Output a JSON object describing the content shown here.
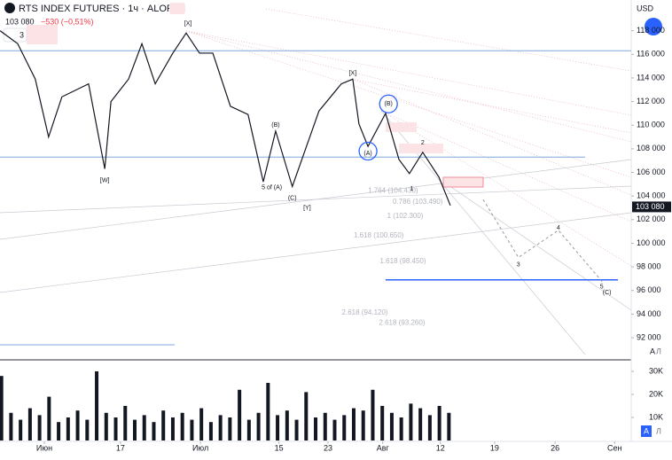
{
  "header": {
    "symbol": "RTS INDEX FUTURES · 1ч · ALOR",
    "price": "103 080",
    "change": "−530 (−0,51%)",
    "currency": "USD",
    "count": "3"
  },
  "buttons": {
    "auto": "A",
    "log": "Л"
  },
  "chart_data": {
    "type": "line",
    "xlim": [
      -9.31,
      123.3
    ],
    "xticks": [
      {
        "value": 0,
        "label": "Июн"
      },
      {
        "value": 16,
        "label": "17"
      },
      {
        "value": 32.8,
        "label": "Июл"
      },
      {
        "value": 49.3,
        "label": "15"
      },
      {
        "value": 59.6,
        "label": "23"
      },
      {
        "value": 71.1,
        "label": "Авг"
      },
      {
        "value": 83.2,
        "label": "12"
      },
      {
        "value": 94.6,
        "label": "19"
      },
      {
        "value": 107.3,
        "label": "26"
      },
      {
        "value": 119.8,
        "label": "Сен"
      }
    ],
    "ylim": [
      90200,
      120600
    ],
    "yticks": [
      {
        "value": 92000,
        "label": "92 000"
      },
      {
        "value": 94000,
        "label": "94 000"
      },
      {
        "value": 96000,
        "label": "96 000"
      },
      {
        "value": 98000,
        "label": "98 000"
      },
      {
        "value": 100000,
        "label": "100 000"
      },
      {
        "value": 102000,
        "label": "102 000"
      },
      {
        "value": 104000,
        "label": "104 000"
      },
      {
        "value": 106000,
        "label": "106 000"
      },
      {
        "value": 108000,
        "label": "108 000"
      },
      {
        "value": 110000,
        "label": "110 000"
      },
      {
        "value": 112000,
        "label": "112 000"
      },
      {
        "value": 114000,
        "label": "114 000"
      },
      {
        "value": 116000,
        "label": "116 000"
      },
      {
        "value": 118000,
        "label": "118 000"
      }
    ],
    "last": {
      "value": 103080,
      "label": "103 080"
    },
    "series": [
      {
        "color": "#131722",
        "dash": false,
        "x": [
          -9.3,
          -5.6,
          -1.9,
          0.9,
          3.7,
          9.3,
          12.7,
          14.0,
          17.7,
          20.5,
          23.3,
          27.0,
          29.8,
          32.6,
          35.4,
          39.1,
          42.8,
          46.0,
          48.6,
          52.1,
          57.7,
          62.4,
          64.8,
          66.1,
          68.0,
          71.7,
          74.5,
          76.7,
          79.5,
          82.9,
          85.3
        ],
        "values": [
          118000,
          116900,
          113900,
          109000,
          112400,
          113500,
          106300,
          112000,
          113900,
          116900,
          113500,
          116100,
          117800,
          116100,
          116100,
          111600,
          110900,
          105200,
          109500,
          104800,
          111200,
          113500,
          113900,
          110100,
          108200,
          111000,
          107100,
          105900,
          107700,
          105600,
          103200
        ]
      },
      {
        "color": "#9598a1",
        "dash": true,
        "x": [
          92.2,
          99.6,
          108.0,
          117.3
        ],
        "values": [
          103700,
          98800,
          101100,
          96700
        ]
      }
    ],
    "hlines": [
      {
        "value": 116300,
        "color": "#7fa7d9",
        "x": [
          -9.3,
          123.3
        ]
      },
      {
        "value": 107300,
        "color": "#7fa7d9",
        "x": [
          -9.3,
          113.6
        ]
      },
      {
        "value": 96900,
        "color": "#2962ff",
        "x": [
          71.7,
          120.5
        ]
      },
      {
        "value": 91400,
        "color": "#7fa7d9",
        "x": [
          -9.3,
          27.4
        ]
      }
    ],
    "annotations": [
      {
        "text": "[X]",
        "x": 30.2,
        "y": 118600
      },
      {
        "text": "[W]",
        "x": 12.7,
        "y": 105300
      },
      {
        "text": "(B)",
        "x": 48.6,
        "y": 110000
      },
      {
        "text": "5 of (A)",
        "x": 47.8,
        "y": 104700
      },
      {
        "text": "(C)",
        "x": 52.1,
        "y": 103800
      },
      {
        "text": "[Y]",
        "x": 55.2,
        "y": 103000
      },
      {
        "text": "[X]",
        "x": 64.8,
        "y": 114400
      },
      {
        "text": "(A)",
        "x": 68.0,
        "y": 107600
      },
      {
        "text": "(B)",
        "x": 72.3,
        "y": 111800
      },
      {
        "text": "2",
        "x": 79.5,
        "y": 108500
      },
      {
        "text": "1",
        "x": 77.2,
        "y": 104600
      },
      {
        "text": "3",
        "x": 99.6,
        "y": 98200
      },
      {
        "text": "4",
        "x": 108.0,
        "y": 101300
      },
      {
        "text": "5",
        "x": 117.1,
        "y": 96300
      },
      {
        "text": "(C)",
        "x": 118.2,
        "y": 95800
      }
    ],
    "circles": [
      {
        "x": 68.0,
        "y": 107800
      },
      {
        "x": 72.3,
        "y": 111800
      }
    ],
    "levels": [
      {
        "label": "1 (102.300)",
        "value": 102300,
        "x": 72.0
      },
      {
        "label": "1.618 (100.650)",
        "value": 100650,
        "x": 65.0
      },
      {
        "label": "1.618 (98.450)",
        "value": 98450,
        "x": 70.5
      },
      {
        "label": "2.618 (94.120)",
        "value": 94120,
        "x": 62.5
      },
      {
        "label": "2.618 (93.260)",
        "value": 93260,
        "x": 70.3
      },
      {
        "label": "0.786 (103.490)",
        "value": 103490,
        "x": 73.2
      },
      {
        "label": "1.764 (104.430)",
        "value": 104430,
        "x": 68.0
      }
    ],
    "volume": {
      "ylim": [
        0,
        34600
      ],
      "yticks": [
        {
          "value": 10000,
          "label": "10K"
        },
        {
          "value": 20000,
          "label": "20K"
        },
        {
          "value": 30000,
          "label": "30K"
        }
      ],
      "color": "#131722",
      "x": [
        -9,
        -7,
        -5,
        -3,
        -1,
        1,
        3,
        5,
        7,
        9,
        11,
        13,
        15,
        17,
        19,
        21,
        23,
        25,
        27,
        29,
        31,
        33,
        35,
        37,
        39,
        41,
        43,
        45,
        47,
        49,
        51,
        53,
        55,
        57,
        59,
        61,
        63,
        65,
        67,
        69,
        71,
        73,
        75,
        77,
        79,
        81,
        83,
        85
      ],
      "values": [
        28000,
        12000,
        9000,
        14000,
        11000,
        19000,
        8000,
        10000,
        13000,
        9000,
        30000,
        12000,
        10000,
        15000,
        9000,
        11000,
        8000,
        13000,
        10000,
        12000,
        9000,
        14000,
        8000,
        11000,
        10000,
        22000,
        9000,
        12000,
        25000,
        11000,
        13000,
        9000,
        21000,
        10000,
        12000,
        9000,
        11000,
        14000,
        13000,
        22000,
        15000,
        12000,
        10000,
        16000,
        14000,
        11000,
        15000,
        12000
      ]
    }
  }
}
